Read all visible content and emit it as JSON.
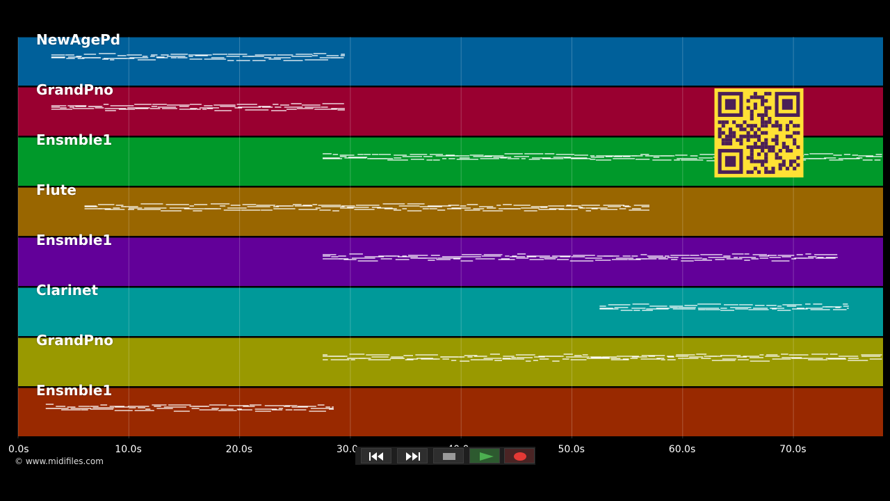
{
  "timeline": {
    "ticks": [
      "0.0s",
      "10.0s",
      "20.0s",
      "30.0s",
      "40.0s",
      "50.0s",
      "60.0s",
      "70.0s"
    ],
    "x_range_seconds": [
      0,
      78
    ]
  },
  "tracks": [
    {
      "name": "NewAgePd",
      "color": "#00609a"
    },
    {
      "name": "GrandPno",
      "color": "#990030"
    },
    {
      "name": "Ensmble1",
      "color": "#00992a"
    },
    {
      "name": "Flute",
      "color": "#996600"
    },
    {
      "name": "Ensmble1",
      "color": "#620099"
    },
    {
      "name": "Clarinet",
      "color": "#009999"
    },
    {
      "name": "GrandPno",
      "color": "#999900"
    },
    {
      "name": "Ensmble1",
      "color": "#992900"
    }
  ],
  "footer": {
    "copyright": "© www.midifiles.com"
  },
  "transport": {
    "buttons": [
      {
        "name": "rewind-button",
        "icon": "rewind-icon"
      },
      {
        "name": "fast-forward-button",
        "icon": "fast-forward-icon"
      },
      {
        "name": "stop-button",
        "icon": "stop-icon"
      },
      {
        "name": "play-button",
        "icon": "play-icon",
        "accent": "#4caf50"
      },
      {
        "name": "record-button",
        "icon": "record-icon",
        "accent": "#e53935"
      }
    ]
  },
  "overlay": {
    "qr_code_colors": {
      "background": "#ffe135",
      "foreground": "#4b1f57"
    }
  },
  "note_spans_seconds": [
    [
      3,
      29.5
    ],
    [
      3,
      29.5
    ],
    [
      27.5,
      78
    ],
    [
      6,
      57
    ],
    [
      27.5,
      74
    ],
    [
      52.5,
      75
    ],
    [
      27.5,
      78
    ],
    [
      2.5,
      28.5
    ]
  ]
}
